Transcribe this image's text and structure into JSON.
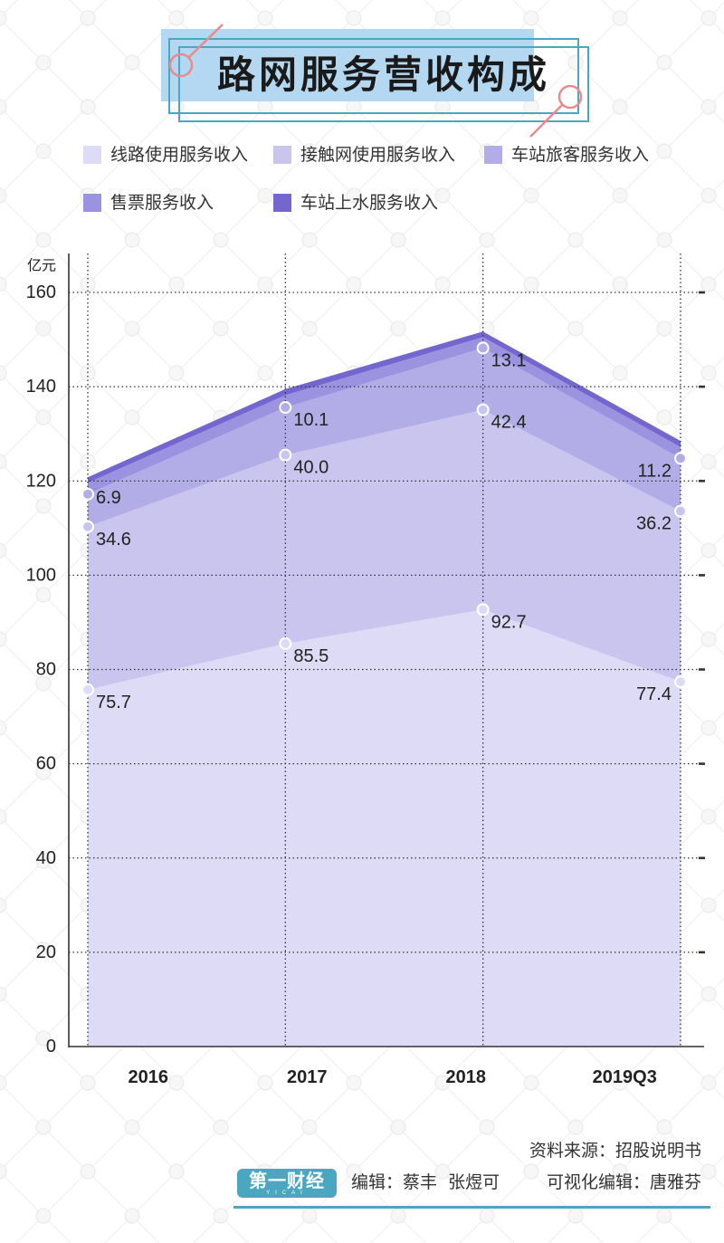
{
  "colors": {
    "accent": "#4ba6c0",
    "title_fill": "#b4d8f1",
    "decor": "#e98a8d",
    "axis": "#333333",
    "text": "#222222"
  },
  "chart_data": {
    "type": "area",
    "stacked": true,
    "title": "路网服务营收构成",
    "xlabel": "",
    "ylabel": "亿元",
    "categories": [
      "2016",
      "2017",
      "2018",
      "2019Q3"
    ],
    "ylim": [
      0,
      160
    ],
    "yticks": [
      0,
      20,
      40,
      60,
      80,
      100,
      120,
      140,
      160
    ],
    "grid": true,
    "legend_position": "top",
    "series": [
      {
        "name": "线路使用服务收入",
        "values": [
          75.7,
          85.5,
          92.7,
          77.4
        ],
        "color": "#dddbf6",
        "show_labels": true
      },
      {
        "name": "接触网使用服务收入",
        "values": [
          34.6,
          40.0,
          42.4,
          36.2
        ],
        "color": "#c9c5ee",
        "show_labels": true
      },
      {
        "name": "车站旅客服务收入",
        "values": [
          6.9,
          10.1,
          13.1,
          11.2
        ],
        "color": "#b3ade7",
        "show_labels": true
      },
      {
        "name": "售票服务收入",
        "values": [
          2.4,
          2.6,
          2.3,
          2.4
        ],
        "color": "#9b93df",
        "show_labels": false
      },
      {
        "name": "车站上水服务收入",
        "values": [
          1.2,
          1.3,
          1.2,
          1.3
        ],
        "color": "#7367cf",
        "show_labels": false
      }
    ]
  },
  "footer": {
    "source": "资料来源：招股说明书",
    "editors": "编辑：蔡丰  张煜可",
    "visualization_editor": "可视化编辑：唐雅芬",
    "logo": {
      "text": "第一财经",
      "sub": "YICAI"
    }
  }
}
